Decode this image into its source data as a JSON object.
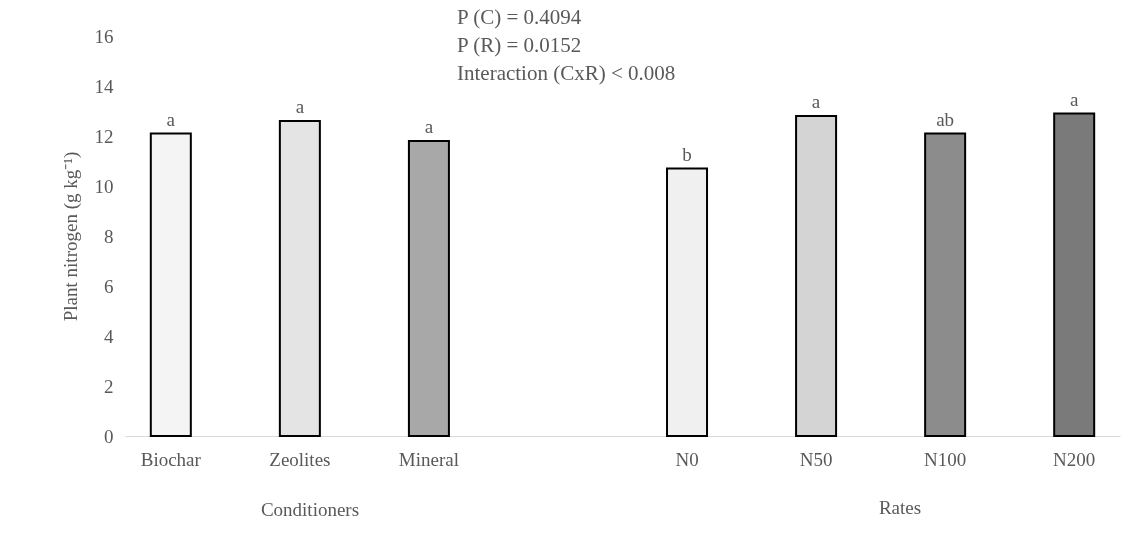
{
  "chart_data": {
    "type": "bar",
    "categories": [
      "Biochar",
      "Zeolites",
      "Mineral",
      null,
      "N0",
      "N50",
      "N100",
      "N200"
    ],
    "values": [
      12.1,
      12.6,
      11.8,
      null,
      10.7,
      12.8,
      12.1,
      12.9
    ],
    "colors": [
      "#f4f4f4",
      "#e4e4e4",
      "#a8a8a8",
      "#ffffff",
      "#f0f0f0",
      "#d4d4d4",
      "#8c8c8c",
      "#7a7a7a"
    ],
    "value_labels": [
      "a",
      "a",
      "a",
      null,
      "b",
      "a",
      "ab",
      "a"
    ],
    "ylabel": "Plant nitrogen (g kg⁻¹)",
    "ylim": [
      0,
      16
    ],
    "yticks": [
      0,
      2,
      4,
      6,
      8,
      10,
      12,
      14,
      16
    ],
    "grid": false,
    "annotations": [
      "P (C) = 0.4094",
      "P (R) = 0.0152",
      "Interaction (CxR) < 0.008",
      "Conditioners",
      "Rates"
    ]
  }
}
